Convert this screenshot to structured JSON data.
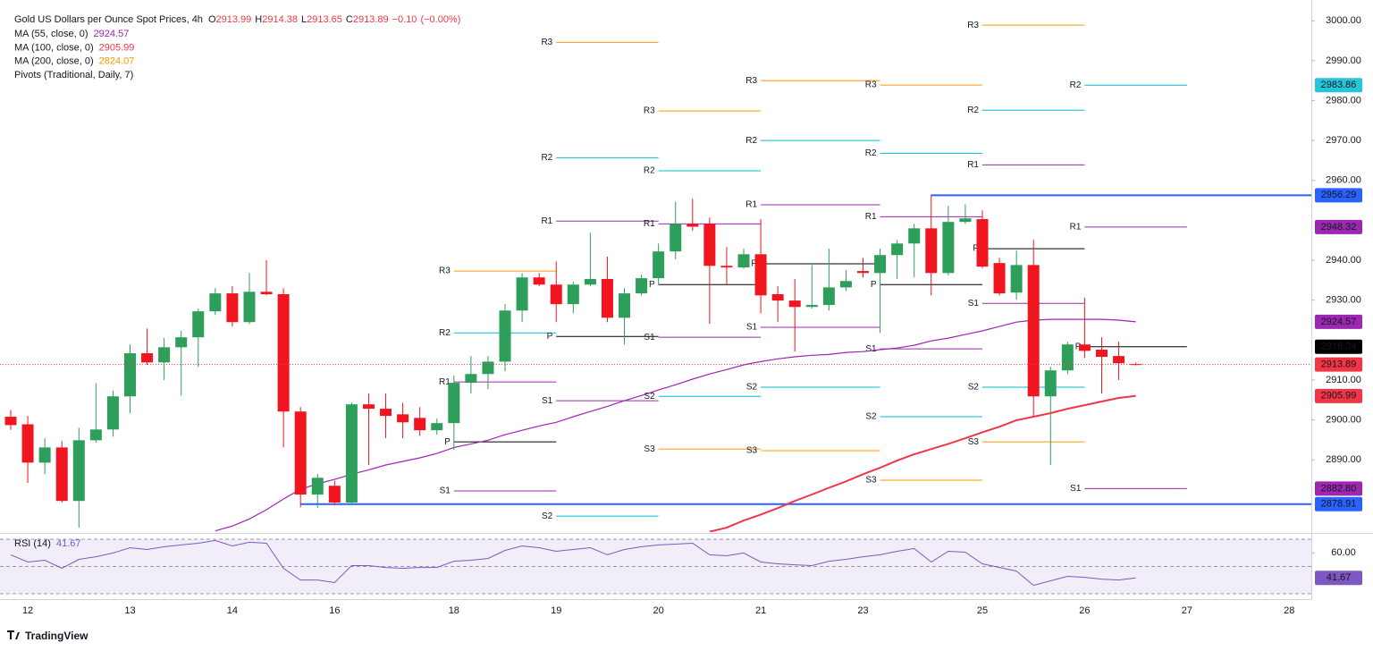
{
  "chart_data": [
    {
      "type": "candlestick",
      "title": "Gold US Dollars per Ounce Spot Prices, 4h",
      "quote": [
        {
          "name": "O",
          "value": 2913.99
        },
        {
          "name": "H",
          "value": 2914.38
        },
        {
          "name": "L",
          "value": 2913.65
        },
        {
          "name": "C",
          "value": 2913.89
        }
      ],
      "change": {
        "value": -0.1,
        "label": "−0.10"
      },
      "change_pct": {
        "value": 0,
        "label": "(−0.00%)"
      },
      "quote_color": "#f23645",
      "categories": [
        null,
        "12",
        null,
        null,
        null,
        null,
        null,
        "13",
        null,
        null,
        null,
        null,
        null,
        "14",
        null,
        null,
        null,
        null,
        null,
        "16",
        null,
        null,
        null,
        null,
        null,
        null,
        "18",
        null,
        null,
        null,
        null,
        null,
        "19",
        null,
        null,
        null,
        null,
        null,
        "20",
        null,
        null,
        null,
        null,
        null,
        "21",
        null,
        null,
        null,
        null,
        null,
        "23",
        null,
        null,
        null,
        null,
        null,
        null,
        "25",
        null,
        null,
        null,
        null,
        null,
        "26",
        null,
        null,
        null,
        null,
        null,
        "27",
        null,
        null,
        null,
        null,
        null,
        "28"
      ],
      "open": [
        2900.8,
        2898.9,
        2889.3,
        2893.1,
        2879.7,
        2894.9,
        2897.6,
        2905.9,
        2916.7,
        2914.4,
        2918.2,
        2920.7,
        2927.2,
        2931.7,
        2924.5,
        2932.1,
        2931.5,
        2902.1,
        2881.3,
        2883.5,
        2879.3,
        2903.9,
        2902.8,
        2901.4,
        2900.5,
        2897.4,
        2899.2,
        2909.3,
        2911.5,
        2914.6,
        2927.4,
        2935.7,
        2933.9,
        2929,
        2933.9,
        2935.3,
        2925.6,
        2931.7,
        2935.5,
        2942.2,
        2949.1,
        2949.1,
        2938.6,
        2938.2,
        2941.5,
        2931.5,
        2929.9,
        2928.3,
        2928.8,
        2933.2,
        2937.3,
        2936.8,
        2941.3,
        2944.2,
        2948,
        2936.8,
        2949.6,
        2950.3,
        2939.3,
        2931.9,
        2938.8,
        2905.9,
        2912.4,
        2918.9,
        2917.6,
        2916,
        2913.99,
        null,
        null,
        null,
        null,
        null,
        null,
        null,
        null,
        null
      ],
      "high": [
        2902.5,
        2901,
        2895.4,
        2894.7,
        2898,
        2909.2,
        2907.3,
        2918.9,
        2922.9,
        2920.5,
        2922.3,
        2927.9,
        2933,
        2933.5,
        2936.8,
        2940,
        2933,
        2903.2,
        2886.4,
        2884.8,
        2904.4,
        2906.6,
        2906.6,
        2904.3,
        2903.2,
        2900.3,
        2911.1,
        2916,
        2916,
        2929,
        2936.8,
        2936.8,
        2939.7,
        2934.6,
        2946.9,
        2940.9,
        2933,
        2936.4,
        2944.2,
        2954.7,
        2955.4,
        2950.7,
        2943.3,
        2942.9,
        2950.3,
        2933.5,
        2935.3,
        2938.8,
        2942.9,
        2937.5,
        2940.6,
        2942.9,
        2945.1,
        2949.1,
        2956.5,
        2953.6,
        2954,
        2952.5,
        2940.6,
        2942.4,
        2945.1,
        2913.3,
        2919.6,
        2930.6,
        2920.7,
        2919.6,
        2914.38,
        null,
        null,
        null,
        null,
        null,
        null,
        null,
        null,
        null
      ],
      "low": [
        2897.5,
        2884.2,
        2886.4,
        2879.3,
        2873,
        2894.3,
        2895.8,
        2901.7,
        2913.8,
        2910,
        2906.1,
        2913.3,
        2926.3,
        2923.4,
        2924,
        2931.2,
        2893.1,
        2878.1,
        2877.9,
        2878.6,
        2878.6,
        2888.7,
        2895.4,
        2895.4,
        2896,
        2896.3,
        2892.5,
        2906.6,
        2907.7,
        2912.2,
        2924.5,
        2933.5,
        2924.5,
        2926.7,
        2933.5,
        2924.5,
        2918.9,
        2931.2,
        2933.9,
        2940.2,
        2947.4,
        2924.1,
        2933.9,
        2937.9,
        2926.7,
        2924.5,
        2917.1,
        2927.9,
        2927.4,
        2932.3,
        2935.7,
        2921.8,
        2935.3,
        2935.7,
        2931.2,
        2936.2,
        2949.1,
        2938,
        2931.2,
        2930.1,
        2901,
        2888.7,
        2911.5,
        2915.5,
        2906.6,
        2910,
        2913.65,
        null,
        null,
        null,
        null,
        null,
        null,
        null,
        null,
        null
      ],
      "close": [
        2898.7,
        2889.3,
        2893.1,
        2879.7,
        2894.9,
        2897.6,
        2905.9,
        2916.7,
        2914.4,
        2918.2,
        2920.7,
        2927.2,
        2931.7,
        2924.5,
        2932.1,
        2931.5,
        2902.1,
        2881.3,
        2885.5,
        2879.3,
        2903.9,
        2902.8,
        2901,
        2899.4,
        2897.4,
        2899.2,
        2909.3,
        2911.5,
        2914.6,
        2927.4,
        2935.7,
        2933.9,
        2929,
        2933.9,
        2935.3,
        2925.6,
        2931.7,
        2935.5,
        2942.2,
        2949.1,
        2948.4,
        2938.6,
        2938.2,
        2941.5,
        2931.2,
        2929.9,
        2928.3,
        2928.8,
        2933.2,
        2934.8,
        2936.8,
        2941.3,
        2944.2,
        2948,
        2936.8,
        2949.6,
        2950.5,
        2938.4,
        2931.7,
        2938.8,
        2905.9,
        2912.4,
        2918.9,
        2917.3,
        2915.8,
        2914.2,
        2913.89,
        null,
        null,
        null,
        null,
        null,
        null,
        null,
        null,
        null
      ],
      "up_color": "#2e9e5b",
      "down_color": "#f0151f",
      "ylim": [
        2871.9,
        3005.2
      ],
      "yticks": [
        {
          "value": 2890,
          "label": "2890.00"
        },
        {
          "value": 2900,
          "label": "2900.00"
        },
        {
          "value": 2910,
          "label": "2910.00"
        },
        {
          "value": 2930,
          "label": "2930.00"
        },
        {
          "value": 2940,
          "label": "2940.00"
        },
        {
          "value": 2960,
          "label": "2960.00"
        },
        {
          "value": 2970,
          "label": "2970.00"
        },
        {
          "value": 2980,
          "label": "2980.00"
        },
        {
          "value": 2990,
          "label": "2990.00"
        },
        {
          "value": 3000,
          "label": "3000.00"
        }
      ],
      "overlays": [
        {
          "name": "MA (55, close, 0)",
          "color": "#9c27b0",
          "last": 2924.57,
          "values": [
            null,
            null,
            null,
            null,
            null,
            null,
            null,
            null,
            null,
            null,
            null,
            null,
            2872.2,
            2873.4,
            2875.2,
            2877.5,
            2880.2,
            2882.6,
            2884.0,
            2885.1,
            2886.4,
            2887.5,
            2888.7,
            2889.6,
            2890.5,
            2891.6,
            2893.1,
            2894.0,
            2894.9,
            2896.3,
            2897.4,
            2898.5,
            2899.4,
            2900.8,
            2902.1,
            2903.4,
            2904.8,
            2906.1,
            2907.5,
            2908.8,
            2910.2,
            2911.5,
            2912.6,
            2913.8,
            2914.6,
            2915.3,
            2915.8,
            2916.2,
            2916.4,
            2916.9,
            2917.1,
            2917.6,
            2918.0,
            2918.7,
            2919.8,
            2920.5,
            2921.4,
            2922.3,
            2923.4,
            2924.5,
            2925.0,
            2925.2,
            2925.2,
            2925.2,
            2925.2,
            2925.0,
            2924.57,
            null,
            null,
            null,
            null,
            null,
            null,
            null,
            null,
            null
          ]
        },
        {
          "name": "MA (100, close, 0)",
          "color": "#f23645",
          "last": 2905.99,
          "values": [
            null,
            null,
            null,
            null,
            null,
            null,
            null,
            null,
            null,
            null,
            null,
            null,
            null,
            null,
            null,
            null,
            null,
            null,
            null,
            null,
            null,
            null,
            null,
            null,
            null,
            null,
            null,
            null,
            null,
            null,
            null,
            null,
            null,
            null,
            null,
            null,
            null,
            null,
            null,
            null,
            null,
            2872.0,
            2873.0,
            2874.8,
            2876.3,
            2877.9,
            2879.7,
            2881.3,
            2883.0,
            2884.6,
            2886.4,
            2888.0,
            2889.8,
            2891.4,
            2892.7,
            2894.0,
            2895.4,
            2896.9,
            2898.3,
            2899.9,
            2900.8,
            2901.7,
            2902.8,
            2903.7,
            2904.6,
            2905.5,
            2905.99,
            null,
            null,
            null,
            null,
            null,
            null,
            null,
            null,
            null
          ]
        },
        {
          "name": "MA (200, close, 0)",
          "color": "#ff9800",
          "last": 2824.07
        }
      ],
      "pivots": {
        "name": "Pivots (Traditional, Daily, 7)",
        "level_colors": {
          "R3": "#ff9800",
          "S3": "#ff9800",
          "R2": "#00bcd4",
          "S2": "#00bcd4",
          "R1": "#9c27b0",
          "S1": "#9c27b0",
          "P": "#000000"
        },
        "periods": [
          {
            "from": 26,
            "to": 32,
            "levels": [
              {
                "label": "R3",
                "value": 2937.3
              },
              {
                "label": "R2",
                "value": 2921.8
              },
              {
                "label": "R1",
                "value": 2909.5
              },
              {
                "label": "P",
                "value": 2894.5
              },
              {
                "label": "S1",
                "value": 2882.2
              }
            ]
          },
          {
            "from": 32,
            "to": 38,
            "levels": [
              {
                "label": "R3",
                "value": 2994.6
              },
              {
                "label": "R2",
                "value": 2965.7
              },
              {
                "label": "R1",
                "value": 2949.8
              },
              {
                "label": "P",
                "value": 2920.9
              },
              {
                "label": "S1",
                "value": 2904.8
              },
              {
                "label": "S2",
                "value": 2875.9
              }
            ]
          },
          {
            "from": 38,
            "to": 44,
            "levels": [
              {
                "label": "R3",
                "value": 2977.4
              },
              {
                "label": "R2",
                "value": 2962.4
              },
              {
                "label": "R1",
                "value": 2949.1
              },
              {
                "label": "P",
                "value": 2933.9
              },
              {
                "label": "S1",
                "value": 2920.7
              },
              {
                "label": "S2",
                "value": 2905.9
              },
              {
                "label": "S3",
                "value": 2892.7
              }
            ]
          },
          {
            "from": 44,
            "to": 51,
            "levels": [
              {
                "label": "R3",
                "value": 2985.0
              },
              {
                "label": "R2",
                "value": 2970.0
              },
              {
                "label": "R1",
                "value": 2953.9
              },
              {
                "label": "P",
                "value": 2939.1
              },
              {
                "label": "S1",
                "value": 2923.2
              },
              {
                "label": "S2",
                "value": 2908.2
              },
              {
                "label": "S3",
                "value": 2892.3
              }
            ]
          },
          {
            "from": 51,
            "to": 57,
            "levels": [
              {
                "label": "R3",
                "value": 2983.9
              },
              {
                "label": "R2",
                "value": 2966.8
              },
              {
                "label": "R1",
                "value": 2950.9
              },
              {
                "label": "P",
                "value": 2933.9
              },
              {
                "label": "S1",
                "value": 2917.8
              },
              {
                "label": "S2",
                "value": 2900.8
              },
              {
                "label": "S3",
                "value": 2884.9
              }
            ]
          },
          {
            "from": 57,
            "to": 63,
            "levels": [
              {
                "label": "R3",
                "value": 2998.9
              },
              {
                "label": "R2",
                "value": 2977.6
              },
              {
                "label": "R1",
                "value": 2963.9
              },
              {
                "label": "P",
                "value": 2942.9
              },
              {
                "label": "S1",
                "value": 2929.2
              },
              {
                "label": "S2",
                "value": 2908.2
              },
              {
                "label": "S3",
                "value": 2894.5
              }
            ]
          },
          {
            "from": 63,
            "to": 69,
            "levels": [
              {
                "label": "R2",
                "value": 2983.86
              },
              {
                "label": "R1",
                "value": 2948.32
              },
              {
                "label": "P",
                "value": 2918.34
              },
              {
                "label": "S1",
                "value": 2882.8
              }
            ]
          }
        ]
      },
      "hlines": [
        {
          "value": 2956.29,
          "from": 54,
          "color": "#2962ff"
        },
        {
          "value": 2878.91,
          "from": 17,
          "color": "#2962ff"
        }
      ],
      "badges": [
        {
          "value": 2983.86,
          "color": "#26c6da",
          "text_color": "#131722"
        },
        {
          "value": 2956.29,
          "color": "#2962ff",
          "text_color": "#ffffff"
        },
        {
          "value": 2948.32,
          "color": "#9c27b0",
          "text_color": "#ffffff"
        },
        {
          "value": 2924.57,
          "color": "#9c27b0",
          "text_color": "#ffffff"
        },
        {
          "value": 2918.34,
          "color": "#000000",
          "text_color": "#ffffff"
        },
        {
          "value": 2913.89,
          "color": "#f23645",
          "text_color": "#ffffff",
          "line": "dotted"
        },
        {
          "value": 2905.99,
          "color": "#f23645",
          "text_color": "#ffffff"
        },
        {
          "value": 2882.8,
          "label": "2882.80",
          "color": "#9c27b0",
          "text_color": "#ffffff"
        },
        {
          "value": 2878.91,
          "color": "#2962ff",
          "text_color": "#ffffff"
        }
      ]
    },
    {
      "type": "line",
      "title": "RSI (14)",
      "last": 41.67,
      "color": "#7e57c2",
      "values": [
        58.6,
        53.3,
        54.6,
        48.7,
        55.3,
        57.2,
        59.9,
        63.8,
        62.5,
        64.5,
        65.8,
        67.1,
        69.1,
        65.1,
        67.8,
        67.1,
        48.7,
        40.1,
        40.1,
        38.2,
        50.7,
        50.7,
        49.3,
        48.7,
        49.3,
        49.3,
        53.9,
        54.6,
        55.9,
        61.8,
        65.1,
        63.8,
        61.2,
        62.5,
        63.8,
        58.6,
        62.5,
        64.5,
        65.8,
        66.4,
        67.1,
        58.6,
        57.9,
        59.9,
        53.3,
        52.0,
        51.3,
        50.7,
        53.9,
        55.3,
        57.2,
        58.6,
        61.2,
        63.2,
        53.3,
        61.2,
        60.5,
        52.0,
        49.3,
        46.7,
        36.2,
        39.5,
        42.8,
        42.1,
        40.8,
        40.1,
        41.67,
        null,
        null,
        null,
        null,
        null,
        null,
        null,
        null,
        null
      ],
      "ylim": [
        27.4,
        73.3
      ],
      "yticks": [
        {
          "value": 60,
          "label": "60.00"
        }
      ],
      "band": [
        30,
        70
      ],
      "levels": [
        70,
        50,
        30
      ]
    }
  ],
  "brand": "TradingView"
}
